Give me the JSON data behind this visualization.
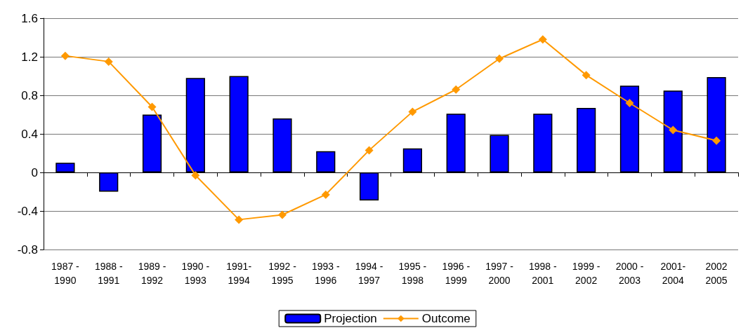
{
  "chart_data": {
    "type": "bar",
    "categories": [
      "1987 -\n1990",
      "1988 -\n1991",
      "1989 -\n1992",
      "1990 -\n1993",
      "1991-\n1994",
      "1992 -\n1995",
      "1993 -\n1996",
      "1994 -\n1997",
      "1995 -\n1998",
      "1996 -\n1999",
      "1997 -\n2000",
      "1998 -\n2001",
      "1999 -\n2002",
      "2000 -\n2003",
      "2001-\n2004",
      "2002\n2005"
    ],
    "series": [
      {
        "name": "Projection",
        "color": "#0000ff",
        "values": [
          0.1,
          -0.2,
          0.6,
          0.98,
          1.0,
          0.56,
          0.22,
          -0.29,
          0.25,
          0.61,
          0.39,
          0.61,
          0.67,
          0.9,
          0.85,
          0.99
        ]
      },
      {
        "name": "Outcome",
        "type": "line",
        "color": "#ff9900",
        "marker": "diamond",
        "values": [
          1.21,
          1.15,
          0.68,
          -0.03,
          -0.49,
          -0.44,
          -0.23,
          0.23,
          0.63,
          0.86,
          1.18,
          1.38,
          1.01,
          0.72,
          0.44,
          0.33
        ]
      }
    ],
    "ylim": [
      -0.8,
      1.6
    ],
    "yticks": [
      -0.8,
      -0.4,
      0,
      0.4,
      0.8,
      1.2,
      1.6
    ],
    "grid": "y",
    "legend": "bottom"
  }
}
